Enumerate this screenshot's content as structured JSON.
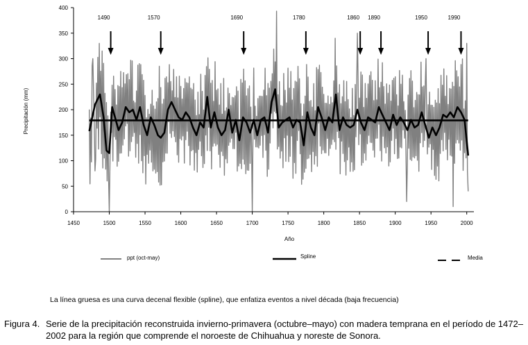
{
  "chart_data": {
    "type": "line",
    "ylabel": "Precipitación (mm)",
    "xlabel": "Año",
    "xlim": [
      1450,
      2010
    ],
    "ylim": [
      0,
      400
    ],
    "x_ticks": [
      1450,
      1500,
      1550,
      1600,
      1650,
      1700,
      1750,
      1800,
      1850,
      1900,
      1950,
      2000
    ],
    "y_ticks": [
      0,
      50,
      100,
      150,
      200,
      250,
      300,
      350,
      400
    ],
    "grid": false,
    "legend_position": "bottom",
    "annotations": [
      {
        "label": "1490",
        "year": 1502
      },
      {
        "label": "1570",
        "year": 1572
      },
      {
        "label": "1690",
        "year": 1688
      },
      {
        "label": "1780",
        "year": 1775
      },
      {
        "label": "1860",
        "year": 1851
      },
      {
        "label": "1890",
        "year": 1880
      },
      {
        "label": "1950",
        "year": 1946
      },
      {
        "label": "1990",
        "year": 1992
      }
    ],
    "series": [
      {
        "name": "ppt (oct-may)",
        "color": "#808080",
        "years_start": 1472,
        "years_end": 2002,
        "notable_points": [
          {
            "x": 1477,
            "y": 300
          },
          {
            "x": 1480,
            "y": 80
          },
          {
            "x": 1500,
            "y": 0
          },
          {
            "x": 1570,
            "y": 285
          },
          {
            "x": 1700,
            "y": 0
          },
          {
            "x": 1734,
            "y": 393
          },
          {
            "x": 1816,
            "y": 340
          },
          {
            "x": 1847,
            "y": 350
          },
          {
            "x": 1916,
            "y": 20
          },
          {
            "x": 1943,
            "y": 300
          },
          {
            "x": 1981,
            "y": 10
          },
          {
            "x": 2000,
            "y": 330
          },
          {
            "x": 2002,
            "y": 40
          }
        ]
      },
      {
        "name": "Spline",
        "color": "#000000",
        "x": [
          1472,
          1480,
          1487,
          1492,
          1496,
          1500,
          1504,
          1508,
          1513,
          1518,
          1523,
          1528,
          1533,
          1538,
          1543,
          1548,
          1553,
          1558,
          1563,
          1568,
          1572,
          1577,
          1582,
          1587,
          1592,
          1597,
          1602,
          1607,
          1612,
          1617,
          1622,
          1627,
          1632,
          1637,
          1642,
          1647,
          1652,
          1657,
          1662,
          1667,
          1672,
          1677,
          1682,
          1687,
          1692,
          1697,
          1702,
          1707,
          1712,
          1717,
          1722,
          1727,
          1732,
          1737,
          1742,
          1747,
          1752,
          1757,
          1762,
          1767,
          1772,
          1777,
          1782,
          1787,
          1792,
          1797,
          1802,
          1807,
          1812,
          1817,
          1822,
          1827,
          1832,
          1837,
          1842,
          1847,
          1852,
          1857,
          1862,
          1867,
          1872,
          1877,
          1882,
          1887,
          1892,
          1897,
          1902,
          1907,
          1912,
          1917,
          1922,
          1927,
          1932,
          1937,
          1942,
          1947,
          1952,
          1957,
          1962,
          1967,
          1972,
          1977,
          1982,
          1987,
          1992,
          1997,
          2002
        ],
        "values": [
          158,
          210,
          230,
          185,
          120,
          115,
          205,
          185,
          160,
          175,
          205,
          195,
          200,
          180,
          205,
          170,
          150,
          185,
          170,
          150,
          145,
          155,
          200,
          215,
          200,
          185,
          180,
          195,
          185,
          165,
          150,
          175,
          165,
          225,
          165,
          195,
          165,
          150,
          160,
          200,
          155,
          180,
          140,
          185,
          175,
          155,
          180,
          150,
          180,
          185,
          155,
          215,
          240,
          165,
          175,
          180,
          185,
          165,
          180,
          175,
          130,
          195,
          165,
          150,
          205,
          185,
          160,
          185,
          175,
          230,
          160,
          185,
          170,
          165,
          170,
          200,
          175,
          160,
          185,
          180,
          175,
          205,
          190,
          175,
          160,
          190,
          170,
          185,
          175,
          160,
          180,
          165,
          170,
          195,
          170,
          145,
          165,
          150,
          165,
          190,
          185,
          195,
          185,
          205,
          195,
          180,
          110
        ]
      },
      {
        "name": "Media",
        "color": "#000000",
        "x": [
          1472,
          2002
        ],
        "values": [
          179,
          179
        ]
      }
    ]
  },
  "note": "La línea gruesa es una curva decenal flexible (spline), que enfatiza eventos a nivel década (baja frecuencia)",
  "caption": {
    "label": "Figura 4.",
    "text": "Serie de la precipitación reconstruida invierno-primavera (octubre–mayo) con madera temprana en el período de 1472–2002 para la región que comprende el noroeste de Chihuahua y noreste de Sonora."
  }
}
